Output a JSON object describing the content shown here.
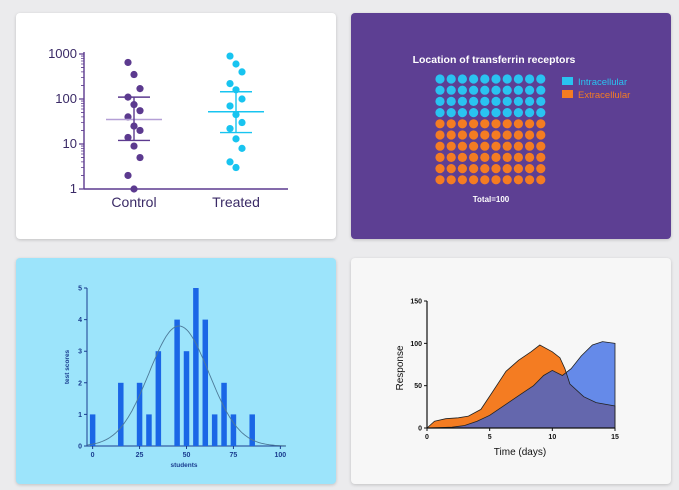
{
  "colors": {
    "page_background": "#ebebed",
    "control": "#5c3a8f",
    "treated": "#18c4f0",
    "dots_background": "#5d3f93",
    "intracellular": "#29c3f1",
    "extracellular": "#f47c22",
    "histogram_background": "#9ce4fb",
    "histogram_bar": "#1a66e6",
    "histogram_curve": "#4d7a99",
    "area_orange": "#f47c22",
    "area_blue": "#2c60e3",
    "area_dark": "#5b5290"
  },
  "chart_data": [
    {
      "type": "scatter",
      "yscale": "log",
      "ylim": [
        1,
        1000
      ],
      "yticks": [
        "1",
        "10",
        "100",
        "1000"
      ],
      "categories": [
        "Control",
        "Treated"
      ],
      "series": [
        {
          "name": "Control",
          "values": [
            1,
            2,
            5,
            9,
            14,
            20,
            25,
            40,
            55,
            75,
            110,
            170,
            350,
            650
          ],
          "mean": 35,
          "error_low": 12,
          "error_high": 110
        },
        {
          "name": "Treated",
          "values": [
            3,
            4,
            8,
            13,
            22,
            30,
            45,
            70,
            100,
            160,
            220,
            400,
            600,
            900
          ],
          "mean": 52,
          "error_low": 18,
          "error_high": 145
        }
      ]
    },
    {
      "type": "dot-matrix",
      "title": "Location of transferrin receptors",
      "total_label": "Total=100",
      "categories": [
        "Intracellular",
        "Extracellular"
      ],
      "values": [
        40,
        60
      ]
    },
    {
      "type": "bar",
      "xlabel": "students",
      "ylabel": "test scores",
      "xlim": [
        -3,
        103
      ],
      "ylim": [
        0,
        5
      ],
      "xticks": [
        "0",
        "25",
        "50",
        "75",
        "100"
      ],
      "yticks": [
        "0",
        "1",
        "2",
        "3",
        "4",
        "5"
      ],
      "x": [
        0,
        15,
        25,
        30,
        35,
        45,
        50,
        55,
        60,
        65,
        70,
        75,
        85
      ],
      "values": [
        1,
        2,
        2,
        1,
        3,
        4,
        3,
        5,
        4,
        1,
        2,
        1,
        1
      ],
      "curve": {
        "type": "normal",
        "mean": 46,
        "sd": 16,
        "peak": 3.8
      }
    },
    {
      "type": "area",
      "xlabel": "Time (days)",
      "ylabel": "Response",
      "xlim": [
        0,
        15
      ],
      "ylim": [
        0,
        150
      ],
      "xticks": [
        "0",
        "5",
        "10",
        "15"
      ],
      "yticks": [
        "0",
        "50",
        "100",
        "150"
      ],
      "series": [
        {
          "name": "",
          "x": [
            0,
            0.6,
            1.5,
            2.5,
            3.3,
            4.3,
            5.2,
            6.3,
            7.3,
            8.3,
            9.0,
            10.0,
            10.6,
            11.0,
            11.4,
            12.5,
            13.5,
            15
          ],
          "values": [
            0,
            8,
            11,
            12,
            14,
            22,
            42,
            67,
            80,
            90,
            98,
            90,
            83,
            70,
            52,
            37,
            30,
            26
          ]
        },
        {
          "name": "",
          "x": [
            0,
            2,
            3,
            4,
            5,
            6.5,
            7.5,
            8.5,
            9.3,
            10.0,
            10.8,
            11.5,
            12.3,
            13.2,
            14.0,
            15
          ],
          "values": [
            0,
            1,
            3,
            8,
            15,
            30,
            40,
            50,
            62,
            68,
            62,
            70,
            85,
            98,
            102,
            100
          ]
        }
      ]
    }
  ]
}
